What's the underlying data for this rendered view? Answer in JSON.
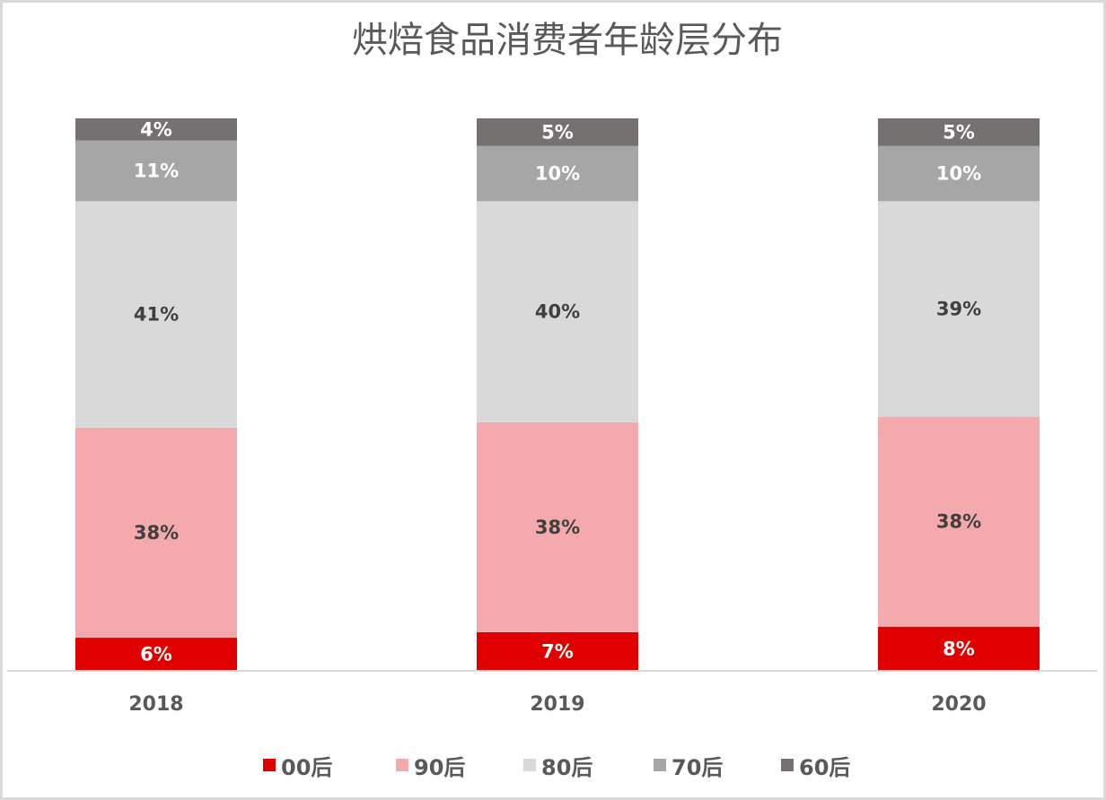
{
  "chart_data": {
    "type": "bar",
    "stacked": true,
    "title": "烘焙食品消费者年龄层分布",
    "categories": [
      "2018",
      "2019",
      "2020"
    ],
    "ylim": [
      0,
      100
    ],
    "grid": false,
    "legend_position": "bottom",
    "series": [
      {
        "name": "00后",
        "color": "#e00000",
        "label_color": "#ffffff",
        "values": [
          6,
          7,
          8
        ]
      },
      {
        "name": "90后",
        "color": "#f4aaad",
        "label_color": "#404040",
        "values": [
          38,
          38,
          38
        ]
      },
      {
        "name": "80后",
        "color": "#d9d9d9",
        "label_color": "#404040",
        "values": [
          41,
          40,
          39
        ]
      },
      {
        "name": "70后",
        "color": "#a6a6a6",
        "label_color": "#ffffff",
        "values": [
          11,
          10,
          10
        ]
      },
      {
        "name": "60后",
        "color": "#767171",
        "label_color": "#ffffff",
        "values": [
          4,
          5,
          5
        ]
      }
    ]
  }
}
